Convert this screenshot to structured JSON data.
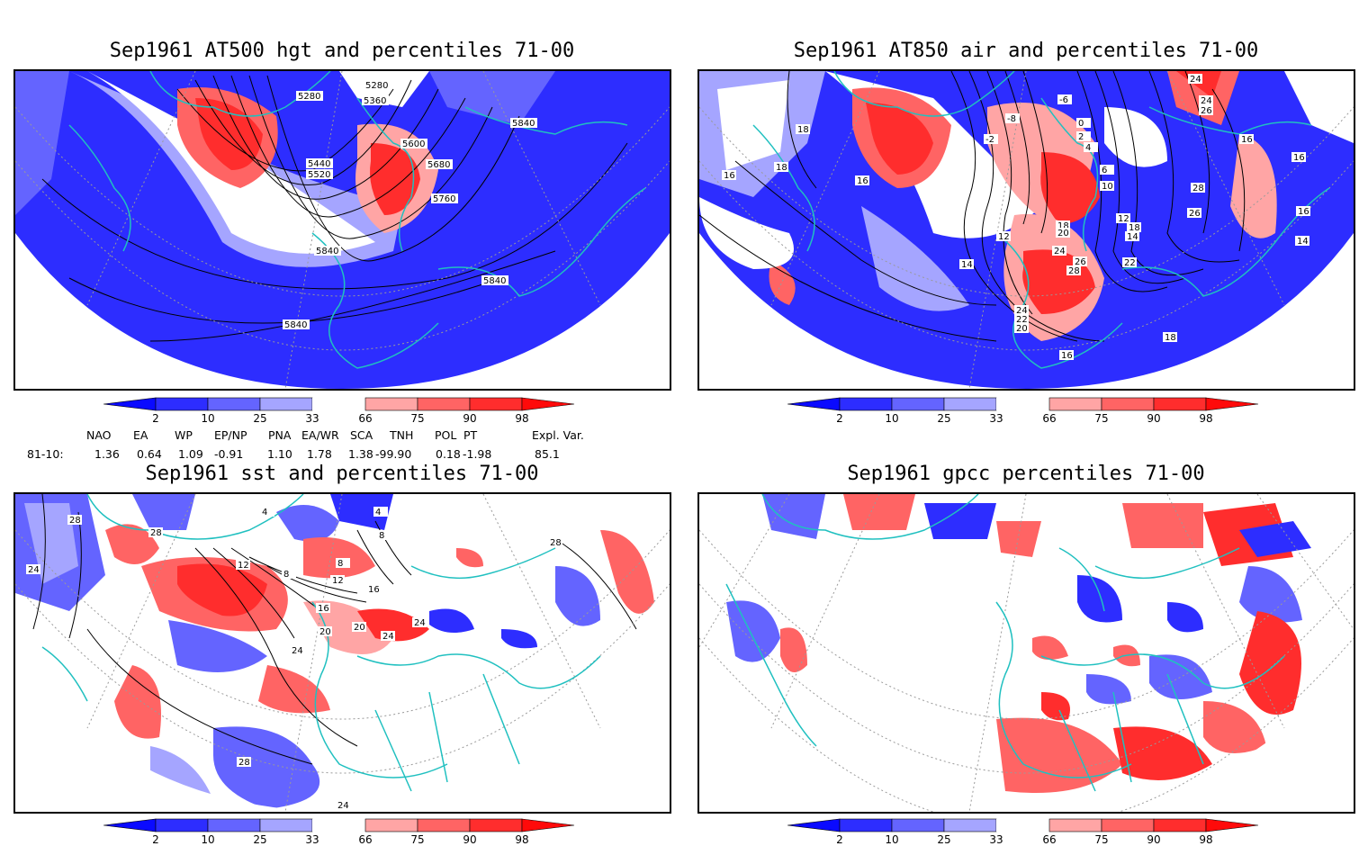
{
  "panels": [
    {
      "id": "p1",
      "title": "Sep1961 AT500 hgt and percentiles 71-00",
      "contour_labels": [
        "5280",
        "5280",
        "5360",
        "5440",
        "5520",
        "5600",
        "5680",
        "5760",
        "5840",
        "5840",
        "5840",
        "5840"
      ]
    },
    {
      "id": "p2",
      "title": "Sep1961 AT850 air and percentiles 71-00",
      "contour_labels": [
        "24",
        "24",
        "26",
        "-6",
        "-8",
        "-2",
        "0",
        "2",
        "4",
        "6",
        "10",
        "18",
        "18",
        "16",
        "16",
        "16",
        "12",
        "12",
        "14",
        "14",
        "18",
        "20",
        "24",
        "26",
        "28",
        "28",
        "26",
        "22",
        "16",
        "14",
        "18",
        "24",
        "22",
        "20",
        "16",
        "16",
        "18"
      ]
    },
    {
      "id": "p3",
      "title": "Sep1961 sst and percentiles 71-00",
      "contour_labels": [
        "28",
        "28",
        "24",
        "4",
        "4",
        "8",
        "8",
        "12",
        "12",
        "8",
        "16",
        "16",
        "20",
        "20",
        "24",
        "24",
        "24",
        "28",
        "28",
        "24"
      ]
    },
    {
      "id": "p4",
      "title": "Sep1961 gpcc percentiles 71-00",
      "contour_labels": []
    }
  ],
  "colorbar": {
    "ticks": [
      "2",
      "10",
      "25",
      "33",
      "66",
      "75",
      "90",
      "98"
    ],
    "colors": {
      "c0": "#0a0aff",
      "c1": "#2d2dff",
      "c2": "#6464ff",
      "c3": "#a5a5ff",
      "white": "#ffffff",
      "c4": "#ffa5a5",
      "c5": "#ff6464",
      "c6": "#ff2d2d",
      "c7": "#ff0a0a"
    }
  },
  "indices": {
    "headers": [
      "NAO",
      "EA",
      "WP",
      "EP/NP",
      "PNA",
      "EA/WR",
      "SCA",
      "TNH",
      "POL",
      "PT",
      "Expl. Var."
    ],
    "row_label": "81-10:",
    "values": [
      "1.36",
      "0.64",
      "1.09",
      "-0.91",
      "1.10",
      "1.78",
      "1.38",
      "-99.90",
      "0.18",
      "-1.98",
      "85.1"
    ]
  },
  "colors": {
    "coast": "#20c0c0",
    "blue": "#2d2dff",
    "red": "#ff2d2d"
  }
}
